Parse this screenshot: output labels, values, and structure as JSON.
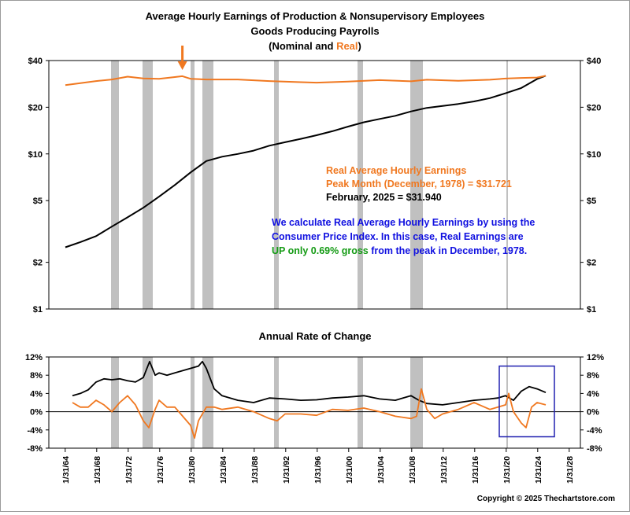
{
  "title": {
    "line1": "Average Hourly Earnings of Production & Nonsupervisory Employees",
    "line2": "Goods Producing Payrolls",
    "line3_prefix": "(Nominal and ",
    "line3_real": "Real",
    "line3_suffix": ")"
  },
  "colors": {
    "nominal": "#000000",
    "real": "#f07820",
    "recession": "#c0c0c0",
    "blue_text": "#1010e0",
    "green_text": "#139a13",
    "box": "#2020b0"
  },
  "annotations": {
    "real_title": "Real Average Hourly Earnings",
    "peak": "Peak Month (December, 1978) = $31.721",
    "latest": "February, 2025 = $31.940",
    "calc_line1": "We calculate Real Average Hourly Earnings by using the",
    "calc_line2": "Consumer Price Index.  In this case, Real Earnings are",
    "calc_line3_green": "UP only 0.69% gross",
    "calc_line3_blue": " from the peak in December, 1978."
  },
  "subtitle": "Annual Rate of Change",
  "copyright": "Copyright © 2025 Thechartstore.com",
  "chart_data": [
    {
      "type": "line",
      "title": "Average Hourly Earnings of Production & Nonsupervisory Employees Goods Producing Payrolls (Nominal and Real)",
      "y_scale": "log",
      "ylim": [
        1,
        40
      ],
      "y_ticks": [
        "$1",
        "$2",
        "$5",
        "$10",
        "$20",
        "$40"
      ],
      "y_tick_values": [
        1,
        2,
        5,
        10,
        20,
        40
      ],
      "xlim": [
        1962.0,
        2029.5
      ],
      "recessions": [
        [
          1969.9,
          1970.9
        ],
        [
          1973.9,
          1975.2
        ],
        [
          1980.0,
          1980.5
        ],
        [
          1981.5,
          1982.9
        ],
        [
          1990.6,
          1991.2
        ],
        [
          2001.2,
          2001.9
        ],
        [
          2007.9,
          2009.5
        ],
        [
          2020.1,
          2020.3
        ]
      ],
      "peak_marker": {
        "x": 1978.96,
        "label": "Peak Month (December, 1978)"
      },
      "series": [
        {
          "name": "Nominal",
          "x": [
            1964.1,
            1966,
            1968,
            1970,
            1972,
            1974,
            1976,
            1978,
            1980,
            1982,
            1984,
            1986,
            1988,
            1990,
            1992,
            1994,
            1996,
            1998,
            2000,
            2002,
            2004,
            2006,
            2008,
            2010,
            2012,
            2014,
            2016,
            2018,
            2020,
            2022,
            2024,
            2025.1
          ],
          "y": [
            2.5,
            2.7,
            2.95,
            3.4,
            3.9,
            4.5,
            5.3,
            6.3,
            7.6,
            9.0,
            9.6,
            10.0,
            10.5,
            11.3,
            11.9,
            12.5,
            13.2,
            14.0,
            15.0,
            16.0,
            16.8,
            17.6,
            18.8,
            19.8,
            20.4,
            21.0,
            21.8,
            22.9,
            24.6,
            26.6,
            30.4,
            31.94
          ]
        },
        {
          "name": "Real",
          "x": [
            1964.1,
            1966,
            1968,
            1970,
            1972,
            1974,
            1976,
            1978,
            1978.96,
            1980,
            1982,
            1986,
            1990,
            1994,
            1996,
            2000,
            2004,
            2008,
            2010,
            2014,
            2018,
            2020,
            2022,
            2024,
            2025.1
          ],
          "y": [
            27.8,
            28.6,
            29.5,
            30.2,
            31.5,
            30.7,
            30.5,
            31.3,
            31.721,
            30.5,
            30.2,
            30.2,
            29.5,
            29.0,
            28.8,
            29.3,
            29.9,
            29.4,
            30.1,
            29.6,
            30.1,
            30.6,
            30.9,
            31.1,
            31.94
          ]
        }
      ]
    },
    {
      "type": "line",
      "title": "Annual Rate of Change",
      "ylim": [
        -8,
        12
      ],
      "y_ticks": [
        "-8%",
        "-4%",
        "0%",
        "4%",
        "8%",
        "12%"
      ],
      "y_tick_values": [
        -8,
        -4,
        0,
        4,
        8,
        12
      ],
      "xlim": [
        1962.0,
        2029.5
      ],
      "x_tick_labels": [
        "1/31/64",
        "1/31/68",
        "1/31/72",
        "1/31/76",
        "1/31/80",
        "1/31/84",
        "1/31/88",
        "1/31/92",
        "1/31/96",
        "1/31/00",
        "1/31/04",
        "1/31/08",
        "1/31/12",
        "1/31/16",
        "1/31/20",
        "1/31/24",
        "1/31/28"
      ],
      "x_tick_values": [
        1964.08,
        1968.08,
        1972.08,
        1976.08,
        1980.08,
        1984.08,
        1988.08,
        1992.08,
        1996.08,
        2000.08,
        2004.08,
        2008.08,
        2012.08,
        2016.08,
        2020.08,
        2024.08,
        2028.08
      ],
      "series": [
        {
          "name": "Nominal",
          "x": [
            1965.0,
            1966,
            1967,
            1968,
            1969,
            1970,
            1971,
            1972,
            1973,
            1974,
            1974.8,
            1975.5,
            1976,
            1977,
            1978,
            1979,
            1980,
            1981,
            1981.5,
            1982,
            1983,
            1984,
            1986,
            1988,
            1990,
            1992,
            1994,
            1996,
            1998,
            2000,
            2002,
            2004,
            2006,
            2008,
            2009,
            2010,
            2012,
            2014,
            2016,
            2018,
            2019,
            2020,
            2021,
            2022,
            2023,
            2024,
            2025.1
          ],
          "y": [
            3.5,
            4.0,
            4.8,
            6.5,
            7.2,
            7.0,
            7.2,
            6.8,
            6.5,
            7.5,
            11.0,
            8.0,
            8.5,
            8.0,
            8.5,
            9.0,
            9.5,
            10.0,
            11.0,
            9.5,
            5.0,
            3.5,
            2.5,
            2.0,
            3.0,
            2.8,
            2.5,
            2.6,
            3.0,
            3.2,
            3.5,
            2.8,
            2.5,
            3.5,
            2.5,
            1.8,
            1.5,
            2.0,
            2.5,
            2.8,
            3.0,
            3.5,
            2.5,
            4.5,
            5.5,
            5.0,
            4.2
          ]
        },
        {
          "name": "Real",
          "x": [
            1965.0,
            1966,
            1967,
            1968,
            1969,
            1970,
            1971,
            1972,
            1973,
            1974,
            1974.7,
            1975.5,
            1976,
            1977,
            1978,
            1979,
            1980,
            1980.5,
            1981,
            1982,
            1983,
            1984,
            1986,
            1988,
            1990,
            1991,
            1992,
            1994,
            1996,
            1998,
            2000,
            2002,
            2004,
            2006,
            2008,
            2008.7,
            2009.3,
            2010,
            2011,
            2012,
            2014,
            2016,
            2018,
            2020,
            2020.4,
            2021,
            2022,
            2022.6,
            2023.3,
            2024,
            2025.1
          ],
          "y": [
            2.0,
            1.0,
            1.0,
            2.5,
            1.5,
            0.0,
            2.0,
            3.5,
            1.5,
            -2.0,
            -3.5,
            0.5,
            2.5,
            1.0,
            1.0,
            -1.0,
            -3.0,
            -5.8,
            -2.0,
            1.0,
            1.0,
            0.5,
            1.0,
            0.0,
            -1.5,
            -2.0,
            -0.5,
            -0.5,
            -0.8,
            0.5,
            0.3,
            0.8,
            0.0,
            -1.0,
            -1.5,
            -1.0,
            5.0,
            0.5,
            -1.5,
            -0.5,
            0.5,
            2.0,
            0.5,
            1.5,
            4.0,
            0.0,
            -2.5,
            -3.5,
            1.0,
            2.0,
            1.5
          ]
        }
      ],
      "highlight_box": {
        "x": [
          2019.2,
          2026.2
        ],
        "y": [
          -5.5,
          10.0
        ]
      }
    }
  ]
}
